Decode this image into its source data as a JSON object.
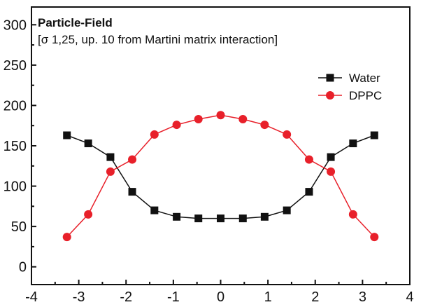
{
  "chart_data": {
    "type": "line",
    "title": "Particle-Field",
    "subtitle": "[σ 1,25, up. 10 from Martini matrix interaction]",
    "xlabel": "",
    "ylabel": "",
    "xlim": [
      -4,
      4
    ],
    "ylim": [
      -22,
      322
    ],
    "x_ticks": [
      -4,
      -3,
      -2,
      -1,
      0,
      1,
      2,
      3,
      4
    ],
    "y_ticks": [
      0,
      50,
      100,
      150,
      200,
      250,
      300
    ],
    "grid": false,
    "legend_position": "top-right",
    "series": [
      {
        "name": "Water",
        "color": "#111111",
        "marker": "square",
        "x": [
          -3.25,
          -2.8,
          -2.33,
          -1.87,
          -1.4,
          -0.93,
          -0.47,
          0,
          0.47,
          0.93,
          1.4,
          1.87,
          2.33,
          2.8,
          3.25
        ],
        "y": [
          163,
          153,
          136,
          93,
          70,
          62,
          60,
          60,
          60,
          62,
          70,
          93,
          136,
          153,
          163
        ]
      },
      {
        "name": "DPPC",
        "color": "#e8202a",
        "marker": "circle",
        "x": [
          -3.25,
          -2.8,
          -2.33,
          -1.87,
          -1.4,
          -0.93,
          -0.47,
          0,
          0.47,
          0.93,
          1.4,
          1.87,
          2.33,
          2.8,
          3.25
        ],
        "y": [
          37,
          65,
          118,
          133,
          164,
          176,
          183,
          188,
          183,
          176,
          164,
          133,
          118,
          65,
          37
        ]
      }
    ]
  }
}
